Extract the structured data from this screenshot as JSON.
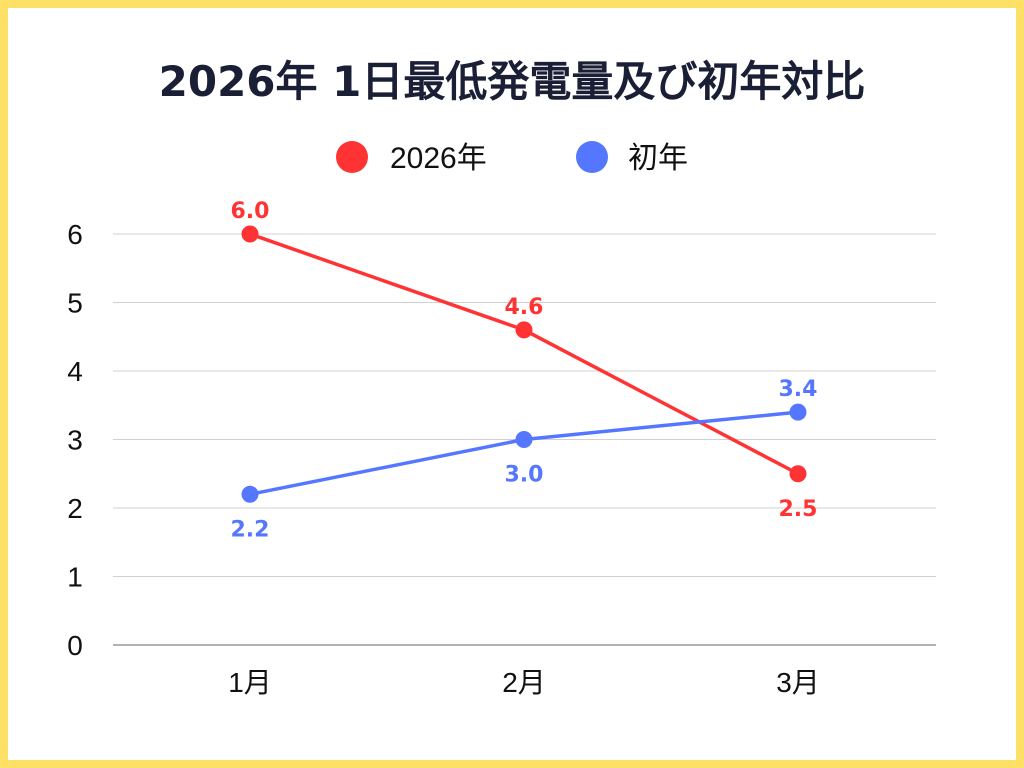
{
  "chart_data": {
    "type": "line",
    "title": "2026年 1日最低発電量及び初年対比",
    "categories": [
      "1月",
      "2月",
      "3月"
    ],
    "series": [
      {
        "name": "2026年",
        "color": "#FF3333",
        "values": [
          6.0,
          4.6,
          2.5
        ]
      },
      {
        "name": "初年",
        "color": "#5577FF",
        "values": [
          2.2,
          3.0,
          3.4
        ]
      }
    ],
    "yticks": [
      0,
      1,
      2,
      3,
      4,
      5,
      6
    ],
    "ylim": [
      0,
      6
    ],
    "grid": true,
    "legend": "top-center",
    "border_color": "#FFE066"
  }
}
